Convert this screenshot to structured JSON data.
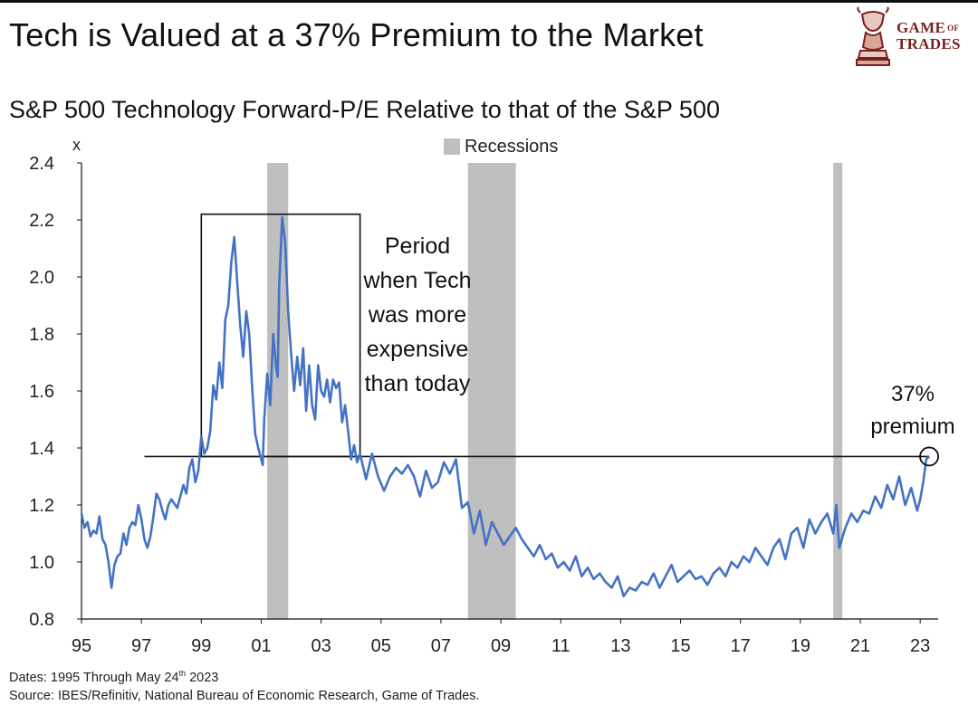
{
  "header": {
    "title": "Tech is Valued at a 37% Premium to the Market",
    "subtitle": "S&P 500 Technology Forward-P/E Relative to that of the S&P 500",
    "logo_line1": "GAME",
    "logo_of": "OF",
    "logo_line2": "TRADES"
  },
  "footnotes": {
    "dates_prefix": "Dates: 1995 Through May 24",
    "dates_sup": "th",
    "dates_suffix": " 2023",
    "source": "Source: IBES/Refinitiv, National Bureau of Economic Research, Game of Trades."
  },
  "colors": {
    "line": "#4472c4",
    "recession": "#bfbfbf",
    "logo": "#7a1f1f"
  },
  "chart_data": {
    "type": "line",
    "title": "S&P 500 Technology Forward-P/E Relative to that of the S&P 500",
    "ylabel": "x",
    "xlabel": "",
    "xlim": [
      1995,
      2023.6
    ],
    "ylim": [
      0.8,
      2.4
    ],
    "yticks": [
      0.8,
      1.0,
      1.2,
      1.4,
      1.6,
      1.8,
      2.0,
      2.2,
      2.4
    ],
    "ytick_labels": [
      "0.8",
      "1.0",
      "1.2",
      "1.4",
      "1.6",
      "1.8",
      "2.0",
      "2.2",
      "2.4"
    ],
    "xticks": [
      1995,
      1997,
      1999,
      2001,
      2003,
      2005,
      2007,
      2009,
      2011,
      2013,
      2015,
      2017,
      2019,
      2021,
      2023
    ],
    "xtick_labels": [
      "95",
      "97",
      "99",
      "01",
      "03",
      "05",
      "07",
      "09",
      "11",
      "13",
      "15",
      "17",
      "19",
      "21",
      "23"
    ],
    "grid": false,
    "legend": {
      "label": "Recessions",
      "placement": "top-center"
    },
    "recessions": [
      {
        "start": 2001.2,
        "end": 2001.9
      },
      {
        "start": 2007.9,
        "end": 2009.5
      },
      {
        "start": 2020.1,
        "end": 2020.4
      }
    ],
    "reference_line": {
      "y": 1.37,
      "x_start": 1997.1,
      "x_end": 2023.3
    },
    "highlight_box": {
      "x_start": 1999.0,
      "x_end": 2004.3,
      "y_start": 1.37,
      "y_end": 2.22
    },
    "box_annotation": [
      "Period",
      "when Tech",
      "was more",
      "expensive",
      "than today"
    ],
    "end_annotation": [
      "37%",
      "premium"
    ],
    "series": [
      {
        "x": [
          1995.0,
          1995.1,
          1995.2,
          1995.3,
          1995.4,
          1995.5,
          1995.6,
          1995.7,
          1995.8,
          1995.9,
          1996.0,
          1996.1,
          1996.2,
          1996.3,
          1996.4,
          1996.5,
          1996.6,
          1996.7,
          1996.8,
          1996.9,
          1997.0,
          1997.1,
          1997.2,
          1997.3,
          1997.4,
          1997.5,
          1997.6,
          1997.7,
          1997.8,
          1997.9,
          1998.0,
          1998.2,
          1998.4,
          1998.5,
          1998.6,
          1998.7,
          1998.8,
          1998.9,
          1999.0,
          1999.1,
          1999.2,
          1999.3,
          1999.4,
          1999.5,
          1999.6,
          1999.7,
          1999.8,
          1999.9,
          2000.0,
          2000.1,
          2000.2,
          2000.3,
          2000.4,
          2000.5,
          2000.6,
          2000.7,
          2000.8,
          2000.9,
          2001.0,
          2001.05,
          2001.1,
          2001.2,
          2001.3,
          2001.4,
          2001.5,
          2001.55,
          2001.6,
          2001.7,
          2001.8,
          2001.9,
          2002.0,
          2002.1,
          2002.2,
          2002.3,
          2002.4,
          2002.5,
          2002.6,
          2002.7,
          2002.8,
          2002.9,
          2003.0,
          2003.1,
          2003.2,
          2003.3,
          2003.4,
          2003.5,
          2003.6,
          2003.7,
          2003.8,
          2003.9,
          2004.0,
          2004.1,
          2004.2,
          2004.3,
          2004.5,
          2004.7,
          2004.9,
          2005.1,
          2005.3,
          2005.5,
          2005.7,
          2005.9,
          2006.1,
          2006.3,
          2006.5,
          2006.7,
          2006.9,
          2007.1,
          2007.3,
          2007.5,
          2007.7,
          2007.9,
          2008.1,
          2008.3,
          2008.5,
          2008.7,
          2008.9,
          2009.1,
          2009.3,
          2009.5,
          2009.7,
          2009.9,
          2010.1,
          2010.3,
          2010.5,
          2010.7,
          2010.9,
          2011.1,
          2011.3,
          2011.5,
          2011.7,
          2011.9,
          2012.1,
          2012.3,
          2012.5,
          2012.7,
          2012.9,
          2013.1,
          2013.3,
          2013.5,
          2013.7,
          2013.9,
          2014.1,
          2014.3,
          2014.5,
          2014.7,
          2014.9,
          2015.1,
          2015.3,
          2015.5,
          2015.7,
          2015.9,
          2016.1,
          2016.3,
          2016.5,
          2016.7,
          2016.9,
          2017.1,
          2017.3,
          2017.5,
          2017.7,
          2017.9,
          2018.1,
          2018.3,
          2018.5,
          2018.7,
          2018.9,
          2019.1,
          2019.3,
          2019.5,
          2019.7,
          2019.9,
          2020.1,
          2020.2,
          2020.3,
          2020.5,
          2020.7,
          2020.9,
          2021.1,
          2021.3,
          2021.5,
          2021.7,
          2021.9,
          2022.1,
          2022.3,
          2022.5,
          2022.7,
          2022.9,
          2023.0,
          2023.1,
          2023.2,
          2023.3
        ],
        "y": [
          1.17,
          1.12,
          1.14,
          1.09,
          1.11,
          1.1,
          1.16,
          1.08,
          1.06,
          1.0,
          0.91,
          0.99,
          1.02,
          1.03,
          1.1,
          1.06,
          1.12,
          1.14,
          1.13,
          1.2,
          1.15,
          1.08,
          1.05,
          1.09,
          1.16,
          1.24,
          1.22,
          1.18,
          1.15,
          1.2,
          1.22,
          1.19,
          1.27,
          1.24,
          1.33,
          1.36,
          1.28,
          1.32,
          1.44,
          1.38,
          1.4,
          1.46,
          1.62,
          1.57,
          1.7,
          1.61,
          1.85,
          1.9,
          2.05,
          2.14,
          1.98,
          1.83,
          1.72,
          1.88,
          1.8,
          1.61,
          1.45,
          1.4,
          1.36,
          1.34,
          1.5,
          1.66,
          1.55,
          1.8,
          1.68,
          1.65,
          1.97,
          2.21,
          2.12,
          1.88,
          1.73,
          1.6,
          1.72,
          1.62,
          1.75,
          1.53,
          1.69,
          1.55,
          1.5,
          1.69,
          1.6,
          1.58,
          1.64,
          1.56,
          1.64,
          1.61,
          1.63,
          1.49,
          1.55,
          1.46,
          1.36,
          1.41,
          1.35,
          1.38,
          1.29,
          1.38,
          1.3,
          1.25,
          1.3,
          1.33,
          1.31,
          1.34,
          1.3,
          1.23,
          1.32,
          1.26,
          1.28,
          1.35,
          1.31,
          1.36,
          1.19,
          1.21,
          1.1,
          1.18,
          1.06,
          1.14,
          1.1,
          1.06,
          1.09,
          1.12,
          1.08,
          1.05,
          1.02,
          1.06,
          1.01,
          1.03,
          0.98,
          1.0,
          0.97,
          1.02,
          0.95,
          0.98,
          0.94,
          0.96,
          0.93,
          0.91,
          0.95,
          0.88,
          0.91,
          0.9,
          0.93,
          0.92,
          0.96,
          0.91,
          0.95,
          0.99,
          0.93,
          0.95,
          0.97,
          0.94,
          0.95,
          0.92,
          0.96,
          0.98,
          0.95,
          1.0,
          0.98,
          1.02,
          1.0,
          1.05,
          1.02,
          0.99,
          1.05,
          1.08,
          1.01,
          1.1,
          1.12,
          1.05,
          1.15,
          1.1,
          1.14,
          1.17,
          1.1,
          1.2,
          1.05,
          1.12,
          1.17,
          1.14,
          1.18,
          1.17,
          1.23,
          1.19,
          1.27,
          1.22,
          1.3,
          1.2,
          1.26,
          1.18,
          1.22,
          1.28,
          1.36,
          1.37
        ]
      }
    ]
  }
}
